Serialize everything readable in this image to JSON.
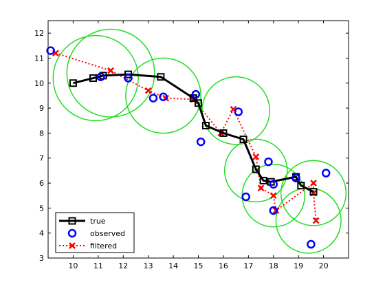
{
  "chart_data": {
    "type": "scatter",
    "title": "",
    "xlabel": "",
    "ylabel": "",
    "xlim": [
      9,
      21
    ],
    "ylim": [
      3,
      12.5
    ],
    "xticks": [
      "10",
      "11",
      "12",
      "13",
      "14",
      "15",
      "16",
      "17",
      "18",
      "19",
      "20"
    ],
    "yticks": [
      "3",
      "4",
      "5",
      "6",
      "7",
      "8",
      "9",
      "10",
      "11",
      "12"
    ],
    "grid": false,
    "legend_position": "bottom-left",
    "series": [
      {
        "name": "true",
        "style": "line-square-marker",
        "color": "#000000",
        "points": [
          [
            10.0,
            10.0
          ],
          [
            10.8,
            10.2
          ],
          [
            11.2,
            10.3
          ],
          [
            12.2,
            10.35
          ],
          [
            13.5,
            10.25
          ],
          [
            14.8,
            9.4
          ],
          [
            15.0,
            9.2
          ],
          [
            15.3,
            8.3
          ],
          [
            16.0,
            8.0
          ],
          [
            16.8,
            7.75
          ],
          [
            17.3,
            6.55
          ],
          [
            17.6,
            6.1
          ],
          [
            17.9,
            6.05
          ],
          [
            18.9,
            6.25
          ],
          [
            19.1,
            5.9
          ],
          [
            19.6,
            5.65
          ]
        ]
      },
      {
        "name": "observed",
        "style": "circle-marker",
        "color": "#0000ff",
        "points": [
          [
            9.1,
            11.3
          ],
          [
            11.1,
            10.25
          ],
          [
            12.2,
            10.2
          ],
          [
            13.2,
            9.4
          ],
          [
            13.6,
            9.45
          ],
          [
            14.9,
            9.55
          ],
          [
            15.1,
            7.65
          ],
          [
            16.6,
            8.85
          ],
          [
            16.9,
            5.45
          ],
          [
            17.8,
            6.85
          ],
          [
            18.0,
            4.9
          ],
          [
            18.0,
            5.95
          ],
          [
            18.9,
            6.2
          ],
          [
            19.5,
            3.55
          ],
          [
            20.1,
            6.4
          ]
        ]
      },
      {
        "name": "filtered",
        "style": "dotted-line-x-marker",
        "color": "#ff0000",
        "points": [
          [
            9.3,
            11.2
          ],
          [
            11.5,
            10.5
          ],
          [
            13.0,
            9.7
          ],
          [
            13.7,
            9.4
          ],
          [
            14.8,
            9.35
          ],
          [
            15.9,
            8.0
          ],
          [
            16.4,
            8.95
          ],
          [
            17.3,
            7.05
          ],
          [
            17.5,
            5.8
          ],
          [
            18.0,
            5.5
          ],
          [
            18.1,
            4.9
          ],
          [
            19.6,
            6.0
          ],
          [
            19.6,
            5.6
          ],
          [
            19.7,
            4.5
          ]
        ]
      }
    ],
    "uncertainty_circles": {
      "color": "#22dd22",
      "circles": [
        [
          10.9,
          10.2,
          1.7
        ],
        [
          11.5,
          10.4,
          1.75
        ],
        [
          13.6,
          9.5,
          1.5
        ],
        [
          16.5,
          8.9,
          1.35
        ],
        [
          17.3,
          6.5,
          1.25
        ],
        [
          18.0,
          5.5,
          1.25
        ],
        [
          19.6,
          5.6,
          1.3
        ],
        [
          19.4,
          4.5,
          1.3
        ]
      ]
    }
  }
}
